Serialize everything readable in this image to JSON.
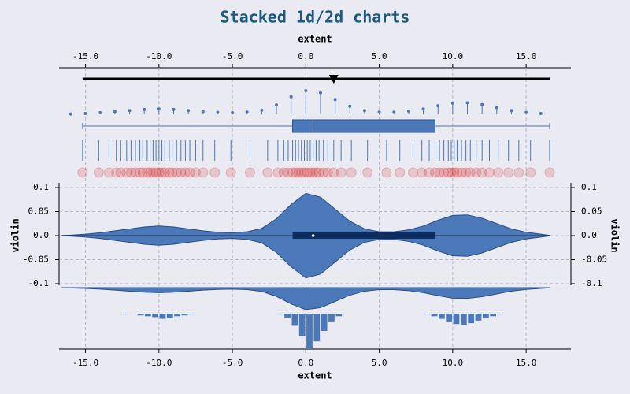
{
  "chart_data": {
    "title": "Stacked 1d/2d charts",
    "xlabel": "extent",
    "xlim": [
      -16.8,
      18.05
    ],
    "xticks": [
      {
        "value": -15,
        "label": "-15.0"
      },
      {
        "value": -10,
        "label": "-10.0"
      },
      {
        "value": -5,
        "label": "-5.0"
      },
      {
        "value": 0,
        "label": "0.0"
      },
      {
        "value": 5,
        "label": "5.0"
      },
      {
        "value": 10,
        "label": "10.0"
      },
      {
        "value": 15,
        "label": "15.0"
      }
    ],
    "grid": true,
    "panels": [
      {
        "type": "marker",
        "value": 1.9,
        "color": "#000000"
      },
      {
        "type": "range",
        "values": [
          -15.2,
          16.6
        ],
        "color": "#000000"
      },
      {
        "type": "lollipop",
        "color": "#4a78b8",
        "x": [
          -16,
          -15,
          -14,
          -13,
          -12,
          -11,
          -10,
          -9,
          -8,
          -7,
          -6,
          -5,
          -4,
          -3,
          -2,
          -1,
          0,
          1,
          2,
          3,
          4,
          5,
          6,
          7,
          8,
          9,
          10,
          11,
          12,
          13,
          14,
          15,
          16
        ],
        "values": [
          0.001,
          0.003,
          0.006,
          0.01,
          0.014,
          0.018,
          0.02,
          0.018,
          0.014,
          0.01,
          0.007,
          0.006,
          0.008,
          0.015,
          0.035,
          0.065,
          0.088,
          0.08,
          0.055,
          0.03,
          0.014,
          0.008,
          0.008,
          0.012,
          0.02,
          0.032,
          0.042,
          0.043,
          0.036,
          0.025,
          0.014,
          0.007,
          0.003
        ]
      },
      {
        "type": "box",
        "color": "#4a78b8",
        "min": -15.2,
        "q1": -0.9,
        "median": 0.5,
        "q3": 8.8,
        "max": 16.6
      },
      {
        "type": "rug",
        "color": "#4a78b8",
        "values": [
          -15.2,
          -14.1,
          -13.4,
          -12.9,
          -12.6,
          -12.2,
          -11.9,
          -11.6,
          -11.3,
          -11.1,
          -10.8,
          -10.6,
          -10.4,
          -10.2,
          -10.0,
          -9.8,
          -9.6,
          -9.3,
          -9.1,
          -8.8,
          -8.5,
          -8.2,
          -7.9,
          -7.5,
          -7.0,
          -6.2,
          -5.1,
          -3.8,
          -2.6,
          -1.9,
          -1.5,
          -1.2,
          -0.9,
          -0.7,
          -0.5,
          -0.3,
          -0.1,
          0.1,
          0.3,
          0.5,
          0.7,
          0.9,
          1.2,
          1.5,
          1.9,
          2.4,
          3.1,
          4.2,
          5.5,
          6.4,
          7.3,
          7.9,
          8.4,
          8.8,
          9.1,
          9.4,
          9.7,
          9.9,
          10.1,
          10.3,
          10.6,
          10.9,
          11.2,
          11.6,
          12.0,
          12.5,
          13.1,
          13.8,
          14.5,
          15.3,
          16.6
        ]
      },
      {
        "type": "scatter",
        "color": "#d62728",
        "values": [
          -15.2,
          -14.1,
          -13.4,
          -12.9,
          -12.6,
          -12.2,
          -11.9,
          -11.6,
          -11.3,
          -11.1,
          -10.8,
          -10.6,
          -10.4,
          -10.2,
          -10.0,
          -9.8,
          -9.6,
          -9.3,
          -9.1,
          -8.8,
          -8.5,
          -8.2,
          -7.9,
          -7.5,
          -7.0,
          -6.2,
          -5.1,
          -3.8,
          -2.6,
          -1.9,
          -1.5,
          -1.2,
          -0.9,
          -0.7,
          -0.5,
          -0.3,
          -0.1,
          0.1,
          0.3,
          0.5,
          0.7,
          0.9,
          1.2,
          1.5,
          1.9,
          2.4,
          3.1,
          4.2,
          5.5,
          6.4,
          7.3,
          7.9,
          8.4,
          8.8,
          9.1,
          9.4,
          9.7,
          9.9,
          10.1,
          10.3,
          10.6,
          10.9,
          11.2,
          11.6,
          12.0,
          12.5,
          13.1,
          13.8,
          14.5,
          15.3,
          16.6
        ]
      },
      {
        "type": "violin",
        "color": "#4a78b8",
        "box_color": "#0d2d5e",
        "ylabel": "violin",
        "ylim": [
          -0.1,
          0.1
        ],
        "yticks": [
          {
            "value": 0.1,
            "label": "0.1"
          },
          0.05,
          {
            "value": 0,
            "label": "0.0"
          },
          -0.05,
          -0.1
        ],
        "x": [
          -16.6,
          -16,
          -15,
          -14,
          -13,
          -12,
          -11,
          -10,
          -9,
          -8,
          -7,
          -6,
          -5,
          -4,
          -3,
          -2,
          -1,
          0,
          1,
          2,
          3,
          4,
          5,
          6,
          7,
          8,
          9,
          10,
          11,
          12,
          13,
          14,
          15,
          16,
          16.6
        ],
        "values": [
          0.0005,
          0.001,
          0.003,
          0.006,
          0.01,
          0.014,
          0.018,
          0.02,
          0.018,
          0.014,
          0.01,
          0.007,
          0.006,
          0.008,
          0.015,
          0.035,
          0.065,
          0.088,
          0.08,
          0.055,
          0.03,
          0.014,
          0.008,
          0.008,
          0.012,
          0.02,
          0.032,
          0.042,
          0.043,
          0.036,
          0.025,
          0.014,
          0.007,
          0.003,
          0.0005
        ],
        "q1": -0.9,
        "median": 0.5,
        "q3": 8.8
      },
      {
        "type": "histogram",
        "color": "#4a78b8",
        "bins": [
          -12.5,
          -12,
          -11.5,
          -11,
          -10.5,
          -10,
          -9.5,
          -9,
          -8.5,
          -8,
          -7.5,
          -7,
          -6.5,
          -6,
          -5.5,
          -5,
          -4.5,
          -4,
          -3.5,
          -3,
          -2.5,
          -2,
          -1.5,
          -1,
          -0.5,
          0,
          0.5,
          1,
          1.5,
          2,
          2.5,
          3,
          3.5,
          4,
          4.5,
          5,
          5.5,
          6,
          6.5,
          7,
          7.5,
          8,
          8.5,
          9,
          9.5,
          10,
          10.5,
          11,
          11.5,
          12,
          12.5,
          13,
          13.5
        ],
        "values": [
          1,
          0,
          2,
          3,
          4,
          6,
          5,
          3,
          2,
          1,
          0,
          0,
          0,
          0,
          0,
          0,
          0,
          0,
          0,
          0,
          0,
          1,
          5,
          14,
          26,
          40,
          32,
          20,
          9,
          3,
          0,
          0,
          0,
          0,
          0,
          0,
          0,
          0,
          0,
          0,
          0,
          1,
          3,
          6,
          9,
          12,
          13,
          11,
          8,
          5,
          3,
          1
        ]
      }
    ]
  }
}
